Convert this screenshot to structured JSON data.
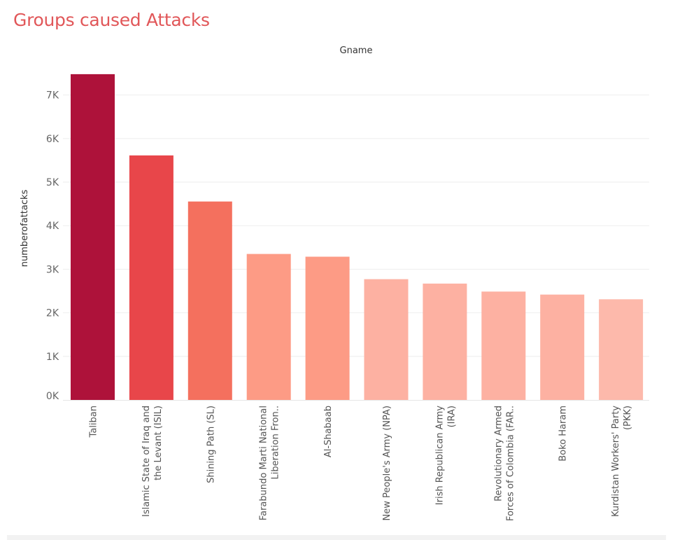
{
  "title": "Groups caused Attacks",
  "colors": {
    "title": "#e15759",
    "bars": [
      "#ae123a",
      "#e8464a",
      "#f4705e",
      "#fd9b85",
      "#fd9b85",
      "#fdb1a2",
      "#fdb1a2",
      "#fdb1a2",
      "#fdb1a2",
      "#fdb9ab"
    ]
  },
  "chart_data": {
    "type": "bar",
    "title": "Groups caused Attacks",
    "column_header": "Gname",
    "ylabel": "numberofattacks",
    "xlabel": "",
    "categories": [
      [
        "Taliban"
      ],
      [
        "Islamic State of Iraq and",
        "the Levant (ISIL)"
      ],
      [
        "Shining Path (SL)"
      ],
      [
        "Farabundo Marti National",
        "Liberation Fron.."
      ],
      [
        "Al-Shabaab"
      ],
      [
        "New People's Army (NPA)"
      ],
      [
        "Irish Republican Army",
        "(IRA)"
      ],
      [
        "Revolutionary Armed",
        "Forces of Colombia (FAR.."
      ],
      [
        "Boko Haram"
      ],
      [
        "Kurdistan Workers' Party",
        "(PKK)"
      ]
    ],
    "values": [
      7478,
      5613,
      4555,
      3351,
      3288,
      2772,
      2671,
      2487,
      2418,
      2310
    ],
    "ylim": [
      0,
      7800
    ],
    "yticks": [
      {
        "value": 0,
        "label": "0K"
      },
      {
        "value": 1000,
        "label": "1K"
      },
      {
        "value": 2000,
        "label": "2K"
      },
      {
        "value": 3000,
        "label": "3K"
      },
      {
        "value": 4000,
        "label": "4K"
      },
      {
        "value": 5000,
        "label": "5K"
      },
      {
        "value": 6000,
        "label": "6K"
      },
      {
        "value": 7000,
        "label": "7K"
      }
    ],
    "grid": true
  }
}
